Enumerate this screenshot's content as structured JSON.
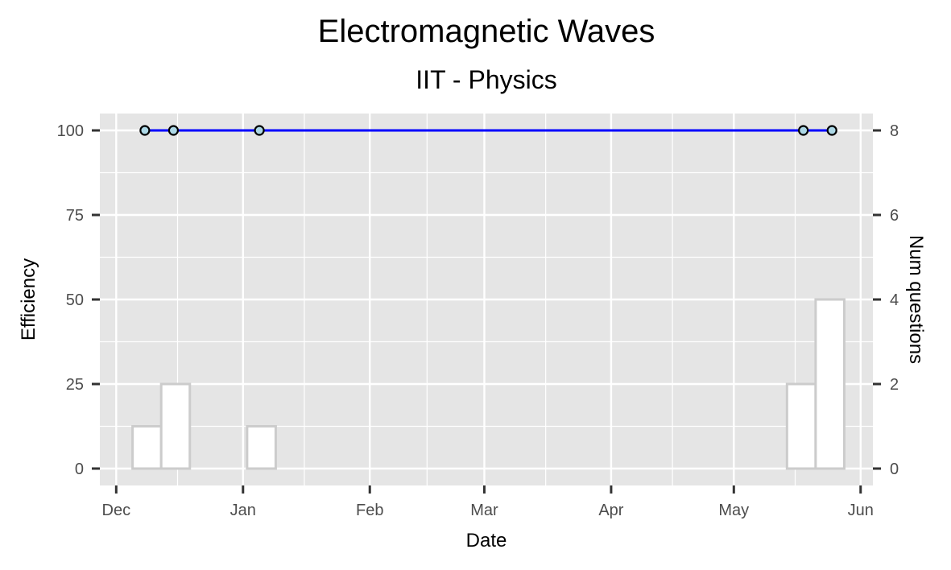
{
  "chart_data": {
    "type": "bar+line",
    "title": "Electromagnetic Waves",
    "subtitle": "IIT - Physics",
    "xlabel": "Date",
    "ylabel_left": "Efficiency",
    "ylabel_right": "Num questions",
    "xlim": [
      "2017-11-27",
      "2018-06-04"
    ],
    "ylim_left": [
      -5,
      105
    ],
    "ylim_right": [
      -0.4,
      8.4
    ],
    "x_ticks": [
      {
        "date": "2017-12-01",
        "label": "Dec"
      },
      {
        "date": "2018-01-01",
        "label": "Jan"
      },
      {
        "date": "2018-02-01",
        "label": "Feb"
      },
      {
        "date": "2018-03-01",
        "label": "Mar"
      },
      {
        "date": "2018-04-01",
        "label": "Apr"
      },
      {
        "date": "2018-05-01",
        "label": "May"
      },
      {
        "date": "2018-06-01",
        "label": "Jun"
      }
    ],
    "x_minor": [
      "2017-12-16",
      "2018-01-16",
      "2018-02-15",
      "2018-03-16",
      "2018-04-16",
      "2018-05-16"
    ],
    "y_left_ticks": [
      0,
      25,
      50,
      75,
      100
    ],
    "y_right_ticks": [
      0,
      2,
      4,
      6,
      8
    ],
    "grid": true,
    "efficiency_series": {
      "name": "Efficiency",
      "color": "#0000ff",
      "point_fill": "#add8e6",
      "x": [
        "2017-12-08",
        "2017-12-15",
        "2018-01-05",
        "2018-05-18",
        "2018-05-25"
      ],
      "y": [
        100,
        100,
        100,
        100,
        100
      ]
    },
    "questions_series": {
      "name": "Num questions",
      "fill": "#ffffff",
      "outline": "#cccccc",
      "bars": [
        {
          "start": "2017-12-05",
          "end": "2017-12-12",
          "value": 1
        },
        {
          "start": "2017-12-12",
          "end": "2017-12-19",
          "value": 2
        },
        {
          "start": "2018-01-02",
          "end": "2018-01-09",
          "value": 1
        },
        {
          "start": "2018-05-14",
          "end": "2018-05-21",
          "value": 2
        },
        {
          "start": "2018-05-21",
          "end": "2018-05-28",
          "value": 4
        }
      ]
    },
    "colors": {
      "panel": "#e5e5e5",
      "grid": "#ffffff",
      "tick": "#333333",
      "tick_text": "#4d4d4d"
    }
  }
}
